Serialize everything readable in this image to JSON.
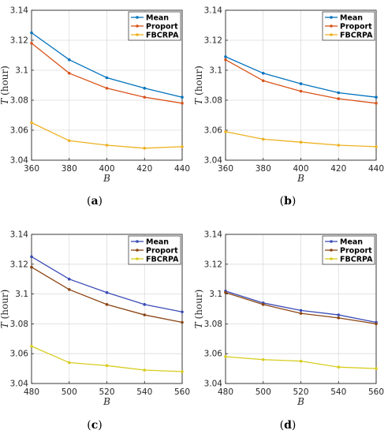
{
  "chart_data": [
    {
      "type": "line",
      "caption": "a",
      "xlabel": "B",
      "ylabel_symbol": "T",
      "ylabel_unit": "(hour)",
      "x": [
        360,
        380,
        400,
        420,
        440
      ],
      "xlim": [
        360,
        440
      ],
      "xticks": [
        "360",
        "380",
        "400",
        "420",
        "440"
      ],
      "ylim": [
        3.04,
        3.14
      ],
      "yticks": [
        "3.04",
        "3.06",
        "3.08",
        "3.1",
        "3.12",
        "3.14"
      ],
      "grid": true,
      "legend_position": "top-right",
      "series": [
        {
          "name": "Mean",
          "color": "#0072BD",
          "values": [
            3.125,
            3.107,
            3.095,
            3.088,
            3.082
          ]
        },
        {
          "name": "Proport",
          "color": "#D95319",
          "values": [
            3.118,
            3.098,
            3.088,
            3.082,
            3.078
          ]
        },
        {
          "name": "FBCRPA",
          "color": "#EDB120",
          "values": [
            3.065,
            3.053,
            3.05,
            3.048,
            3.049
          ]
        }
      ]
    },
    {
      "type": "line",
      "caption": "b",
      "xlabel": "B",
      "ylabel_symbol": "T",
      "ylabel_unit": "(hour)",
      "x": [
        360,
        380,
        400,
        420,
        440
      ],
      "xlim": [
        360,
        440
      ],
      "xticks": [
        "360",
        "380",
        "400",
        "420",
        "440"
      ],
      "ylim": [
        3.04,
        3.14
      ],
      "yticks": [
        "3.04",
        "3.06",
        "3.08",
        "3.1",
        "3.12",
        "3.14"
      ],
      "grid": true,
      "legend_position": "top-right",
      "series": [
        {
          "name": "Mean",
          "color": "#0072BD",
          "values": [
            3.109,
            3.098,
            3.091,
            3.085,
            3.082
          ]
        },
        {
          "name": "Proport",
          "color": "#D95319",
          "values": [
            3.107,
            3.093,
            3.086,
            3.081,
            3.078
          ]
        },
        {
          "name": "FBCRPA",
          "color": "#EDB120",
          "values": [
            3.059,
            3.054,
            3.052,
            3.05,
            3.049
          ]
        }
      ]
    },
    {
      "type": "line",
      "caption": "c",
      "xlabel": "B",
      "ylabel_symbol": "T",
      "ylabel_unit": "(hour)",
      "x": [
        480,
        500,
        520,
        540,
        560
      ],
      "xlim": [
        480,
        560
      ],
      "xticks": [
        "480",
        "500",
        "520",
        "540",
        "560"
      ],
      "ylim": [
        3.04,
        3.14
      ],
      "yticks": [
        "3.04",
        "3.06",
        "3.08",
        "3.1",
        "3.12",
        "3.14"
      ],
      "grid": true,
      "legend_position": "top-right",
      "series": [
        {
          "name": "Mean",
          "color": "#3A4CB6",
          "values": [
            3.125,
            3.11,
            3.101,
            3.093,
            3.088
          ]
        },
        {
          "name": "Proport",
          "color": "#8B4513",
          "values": [
            3.118,
            3.103,
            3.093,
            3.086,
            3.081
          ]
        },
        {
          "name": "FBCRPA",
          "color": "#D8CC1E",
          "values": [
            3.065,
            3.054,
            3.052,
            3.049,
            3.048
          ]
        }
      ]
    },
    {
      "type": "line",
      "caption": "d",
      "xlabel": "B",
      "ylabel_symbol": "T",
      "ylabel_unit": "(hour)",
      "x": [
        480,
        500,
        520,
        540,
        560
      ],
      "xlim": [
        480,
        560
      ],
      "xticks": [
        "480",
        "500",
        "520",
        "540",
        "560"
      ],
      "ylim": [
        3.04,
        3.14
      ],
      "yticks": [
        "3.04",
        "3.06",
        "3.08",
        "3.1",
        "3.12",
        "3.14"
      ],
      "grid": true,
      "legend_position": "top-right",
      "series": [
        {
          "name": "Mean",
          "color": "#3A4CB6",
          "values": [
            3.102,
            3.094,
            3.089,
            3.086,
            3.081
          ]
        },
        {
          "name": "Proport",
          "color": "#8B4513",
          "values": [
            3.101,
            3.093,
            3.087,
            3.084,
            3.08
          ]
        },
        {
          "name": "FBCRPA",
          "color": "#D8CC1E",
          "values": [
            3.058,
            3.056,
            3.055,
            3.051,
            3.05
          ]
        }
      ]
    }
  ]
}
